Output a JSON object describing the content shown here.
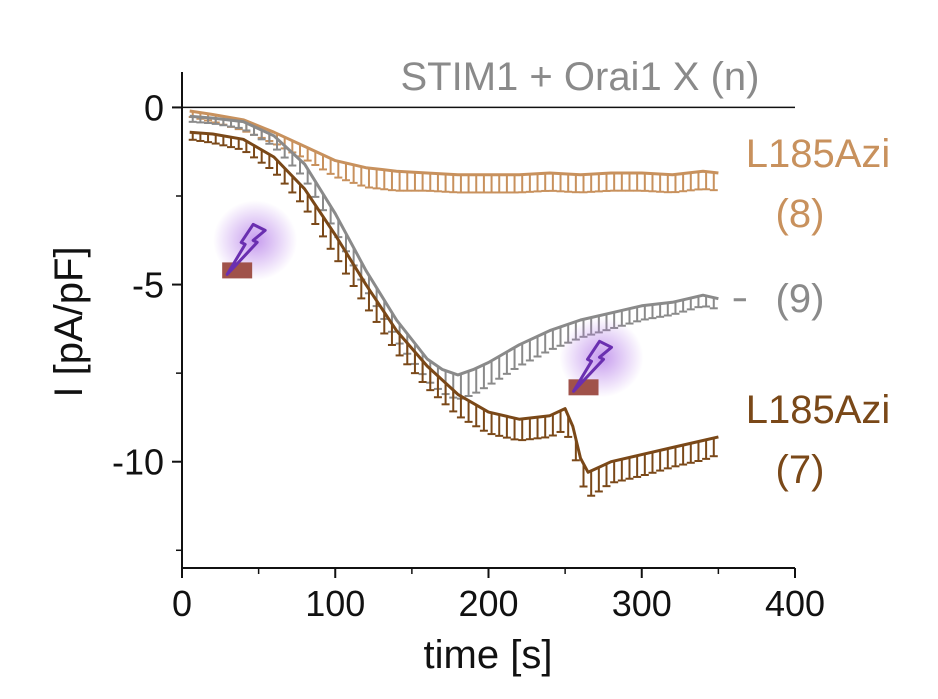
{
  "chart_data": {
    "type": "line",
    "title": "STIM1 + Orai1 X (n)",
    "xlabel": "time [s]",
    "ylabel": "I [pA/pF]",
    "xlim": [
      0,
      400
    ],
    "ylim": [
      -13,
      1
    ],
    "x_ticks": [
      0,
      100,
      200,
      300,
      400
    ],
    "y_ticks": [
      0,
      -5,
      -10
    ],
    "x_tick_labels": [
      "0",
      "100",
      "200",
      "300",
      "400"
    ],
    "y_tick_labels": [
      "0",
      "-5",
      "-10"
    ],
    "colors": {
      "light": "#c8915d",
      "gray": "#8a8a8a",
      "dark": "#7a4818",
      "flash": "#6a2fb0",
      "marker": "#a0524a"
    },
    "series": [
      {
        "name": "L185Azi light",
        "label_line1": "L185Azi",
        "label_line2": "(8)",
        "color": "#c8915d",
        "x": [
          5,
          20,
          40,
          60,
          80,
          100,
          120,
          140,
          160,
          180,
          200,
          220,
          240,
          260,
          280,
          300,
          320,
          340,
          350
        ],
        "values": [
          -0.1,
          -0.2,
          -0.35,
          -0.7,
          -1.1,
          -1.5,
          -1.7,
          -1.8,
          -1.85,
          -1.9,
          -1.9,
          -1.9,
          -1.85,
          -1.9,
          -1.85,
          -1.85,
          -1.9,
          -1.8,
          -1.85
        ],
        "error": [
          0.15,
          0.2,
          0.3,
          0.3,
          0.35,
          0.45,
          0.55,
          0.55,
          0.5,
          0.5,
          0.5,
          0.5,
          0.5,
          0.5,
          0.5,
          0.5,
          0.5,
          0.5,
          0.5
        ]
      },
      {
        "name": "wild type",
        "label_line1": "(9)",
        "color": "#8a8a8a",
        "x": [
          5,
          20,
          40,
          60,
          80,
          100,
          120,
          140,
          160,
          170,
          180,
          190,
          200,
          220,
          240,
          260,
          280,
          300,
          320,
          340,
          350
        ],
        "values": [
          -0.25,
          -0.3,
          -0.4,
          -0.8,
          -1.6,
          -3.0,
          -4.6,
          -6.0,
          -7.1,
          -7.4,
          -7.55,
          -7.4,
          -7.2,
          -6.7,
          -6.3,
          -6.0,
          -5.8,
          -5.6,
          -5.5,
          -5.3,
          -5.4
        ],
        "error": [
          0.15,
          0.15,
          0.2,
          0.3,
          0.4,
          0.5,
          0.5,
          0.55,
          0.6,
          0.65,
          0.7,
          0.7,
          0.65,
          0.6,
          0.55,
          0.5,
          0.45,
          0.4,
          0.35,
          0.3,
          0.3
        ]
      },
      {
        "name": "L185Azi dark",
        "label_line1": "L185Azi",
        "label_line2": "(7)",
        "color": "#7a4818",
        "x": [
          5,
          20,
          40,
          60,
          80,
          100,
          120,
          140,
          160,
          180,
          200,
          220,
          240,
          250,
          255,
          260,
          265,
          270,
          280,
          300,
          320,
          340,
          350
        ],
        "values": [
          -0.7,
          -0.75,
          -0.9,
          -1.4,
          -2.3,
          -3.6,
          -5.0,
          -6.3,
          -7.3,
          -8.1,
          -8.6,
          -8.8,
          -8.7,
          -8.5,
          -9.0,
          -9.9,
          -10.3,
          -10.2,
          -10.0,
          -9.8,
          -9.6,
          -9.4,
          -9.3
        ],
        "error": [
          0.2,
          0.25,
          0.3,
          0.4,
          0.5,
          0.6,
          0.6,
          0.6,
          0.6,
          0.6,
          0.6,
          0.6,
          0.6,
          0.6,
          0.6,
          0.6,
          0.7,
          0.7,
          0.6,
          0.6,
          0.55,
          0.55,
          0.5
        ]
      }
    ],
    "annotations": [
      {
        "type": "flash",
        "x": 36,
        "y": -4.6,
        "color": "#6a2fb0"
      },
      {
        "type": "flash",
        "x": 262,
        "y": -7.9,
        "color": "#6a2fb0"
      }
    ]
  }
}
